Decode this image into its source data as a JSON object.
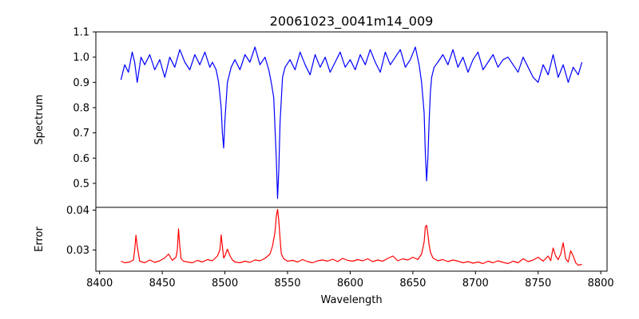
{
  "chart_data": {
    "title": "20061023_0041m14_009",
    "xlabel": "Wavelength",
    "xlim": [
      8397,
      8805
    ],
    "xticks": [
      8400,
      8450,
      8500,
      8550,
      8600,
      8650,
      8700,
      8750,
      8800
    ],
    "panels": [
      {
        "type": "line",
        "ylabel": "Spectrum",
        "ylim": [
          0.405,
          1.1
        ],
        "yticks": [
          0.5,
          0.6,
          0.7,
          0.8,
          0.9,
          1.0,
          1.1
        ],
        "tick_labels": [
          "0.5",
          "0.6",
          "0.7",
          "0.8",
          "0.9",
          "1.0",
          "1.1"
        ],
        "series": [
          {
            "color": "#0000ff",
            "x": [
              8417,
              8420,
              8423,
              8426,
              8428,
              8430,
              8433,
              8436,
              8440,
              8444,
              8448,
              8452,
              8456,
              8460,
              8464,
              8468,
              8472,
              8476,
              8480,
              8484,
              8488,
              8490,
              8493,
              8495,
              8497,
              8498,
              8499,
              8500,
              8502,
              8505,
              8508,
              8512,
              8516,
              8520,
              8524,
              8528,
              8532,
              8535,
              8537,
              8539,
              8540,
              8541,
              8542,
              8543,
              8544,
              8546,
              8548,
              8552,
              8556,
              8560,
              8564,
              8568,
              8572,
              8576,
              8580,
              8584,
              8588,
              8592,
              8596,
              8600,
              8604,
              8608,
              8612,
              8616,
              8620,
              8624,
              8628,
              8632,
              8636,
              8640,
              8644,
              8648,
              8652,
              8655,
              8657,
              8659,
              8660,
              8661,
              8662,
              8663,
              8664,
              8665,
              8667,
              8670,
              8674,
              8678,
              8682,
              8686,
              8690,
              8694,
              8698,
              8702,
              8706,
              8710,
              8714,
              8718,
              8722,
              8726,
              8730,
              8734,
              8738,
              8742,
              8746,
              8750,
              8754,
              8758,
              8762,
              8766,
              8770,
              8774,
              8778,
              8782,
              8785
            ],
            "y": [
              0.91,
              0.97,
              0.94,
              1.02,
              0.98,
              0.9,
              1.0,
              0.97,
              1.01,
              0.95,
              0.99,
              0.92,
              1.0,
              0.96,
              1.03,
              0.98,
              0.95,
              1.01,
              0.97,
              1.02,
              0.96,
              0.98,
              0.95,
              0.9,
              0.8,
              0.7,
              0.64,
              0.75,
              0.9,
              0.96,
              0.99,
              0.95,
              1.01,
              0.98,
              1.04,
              0.97,
              1.0,
              0.95,
              0.9,
              0.84,
              0.72,
              0.6,
              0.44,
              0.55,
              0.74,
              0.92,
              0.96,
              0.99,
              0.95,
              1.02,
              0.97,
              0.93,
              1.01,
              0.96,
              1.0,
              0.94,
              0.98,
              1.02,
              0.96,
              0.99,
              0.95,
              1.01,
              0.97,
              1.03,
              0.98,
              0.94,
              1.02,
              0.97,
              1.0,
              1.03,
              0.96,
              0.99,
              1.04,
              0.97,
              0.9,
              0.78,
              0.62,
              0.51,
              0.6,
              0.75,
              0.86,
              0.92,
              0.96,
              0.98,
              1.01,
              0.97,
              1.03,
              0.96,
              1.0,
              0.94,
              0.99,
              1.02,
              0.95,
              0.98,
              1.01,
              0.96,
              0.99,
              1.0,
              0.97,
              0.94,
              1.0,
              0.96,
              0.92,
              0.9,
              0.97,
              0.93,
              1.01,
              0.92,
              0.97,
              0.9,
              0.96,
              0.93,
              0.98
            ]
          }
        ]
      },
      {
        "type": "line",
        "ylabel": "Error",
        "ylim": [
          0.0247,
          0.0407
        ],
        "yticks": [
          0.03,
          0.04
        ],
        "tick_labels": [
          "0.03",
          "0.04"
        ],
        "series": [
          {
            "color": "#ff0000",
            "x": [
              8417,
              8420,
              8424,
              8427,
              8428,
              8429,
              8430,
              8432,
              8436,
              8440,
              8444,
              8448,
              8452,
              8455,
              8458,
              8461,
              8462,
              8463,
              8464,
              8465,
              8467,
              8470,
              8474,
              8478,
              8482,
              8486,
              8490,
              8494,
              8496,
              8497,
              8498,
              8499,
              8500,
              8502,
              8504,
              8506,
              8508,
              8512,
              8516,
              8520,
              8524,
              8528,
              8532,
              8536,
              8538,
              8540,
              8541,
              8542,
              8543,
              8544,
              8545,
              8547,
              8550,
              8554,
              8558,
              8562,
              8566,
              8570,
              8574,
              8578,
              8582,
              8586,
              8590,
              8594,
              8598,
              8602,
              8606,
              8610,
              8614,
              8618,
              8622,
              8626,
              8630,
              8634,
              8638,
              8642,
              8646,
              8650,
              8654,
              8657,
              8659,
              8660,
              8661,
              8662,
              8663,
              8664,
              8666,
              8670,
              8674,
              8678,
              8682,
              8686,
              8690,
              8694,
              8698,
              8702,
              8706,
              8710,
              8714,
              8718,
              8722,
              8726,
              8730,
              8734,
              8738,
              8742,
              8746,
              8750,
              8754,
              8758,
              8760,
              8762,
              8764,
              8766,
              8768,
              8770,
              8772,
              8774,
              8776,
              8778,
              8780,
              8782,
              8785
            ],
            "y": [
              0.0272,
              0.0268,
              0.027,
              0.0275,
              0.03,
              0.0337,
              0.031,
              0.0272,
              0.0268,
              0.0275,
              0.0269,
              0.0273,
              0.028,
              0.029,
              0.0274,
              0.0282,
              0.03,
              0.0353,
              0.031,
              0.0278,
              0.0272,
              0.027,
              0.0268,
              0.0274,
              0.027,
              0.0276,
              0.0273,
              0.0285,
              0.03,
              0.0338,
              0.031,
              0.028,
              0.0285,
              0.0302,
              0.0286,
              0.0275,
              0.027,
              0.0268,
              0.0272,
              0.0269,
              0.0275,
              0.0273,
              0.0279,
              0.029,
              0.031,
              0.0345,
              0.0385,
              0.0402,
              0.0375,
              0.033,
              0.029,
              0.0278,
              0.0272,
              0.0274,
              0.027,
              0.0276,
              0.0271,
              0.0268,
              0.0273,
              0.0275,
              0.0272,
              0.0277,
              0.0271,
              0.0279,
              0.0274,
              0.0272,
              0.0276,
              0.0273,
              0.0278,
              0.0271,
              0.0275,
              0.0272,
              0.0279,
              0.0285,
              0.0273,
              0.0278,
              0.0275,
              0.0282,
              0.0276,
              0.029,
              0.032,
              0.0358,
              0.0362,
              0.034,
              0.0312,
              0.0295,
              0.028,
              0.0273,
              0.0276,
              0.0271,
              0.0275,
              0.0272,
              0.0268,
              0.0271,
              0.0267,
              0.027,
              0.0266,
              0.0272,
              0.0268,
              0.0273,
              0.0269,
              0.0266,
              0.0272,
              0.0268,
              0.0278,
              0.0271,
              0.0275,
              0.0282,
              0.0272,
              0.0285,
              0.0273,
              0.0305,
              0.0285,
              0.0276,
              0.029,
              0.0318,
              0.0278,
              0.027,
              0.0298,
              0.0285,
              0.0268,
              0.0262,
              0.0264
            ]
          }
        ]
      }
    ]
  }
}
